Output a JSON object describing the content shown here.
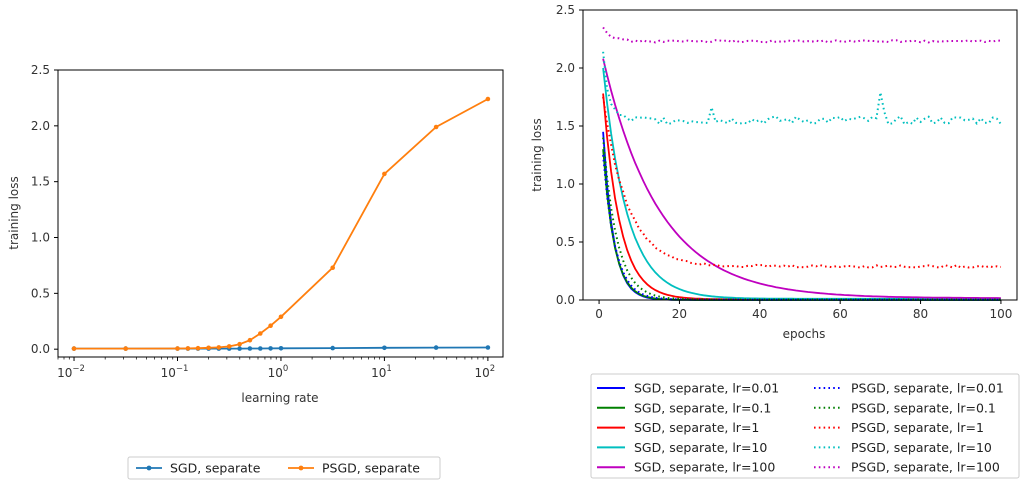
{
  "chart_data": [
    {
      "type": "line",
      "xlabel": "learning rate",
      "ylabel": "training loss",
      "xscale": "log",
      "xlim": [
        0.007,
        140
      ],
      "ylim": [
        -0.07,
        2.5
      ],
      "grid": false,
      "legend_position": "bottom-center",
      "xticks": [
        {
          "value": 0.01,
          "base": "10",
          "exp": "−2"
        },
        {
          "value": 0.1,
          "base": "10",
          "exp": "−1"
        },
        {
          "value": 1,
          "base": "10",
          "exp": "0"
        },
        {
          "value": 10,
          "base": "10",
          "exp": "1"
        },
        {
          "value": 100,
          "base": "10",
          "exp": "2"
        }
      ],
      "yticks": [
        "0.0",
        "0.5",
        "1.0",
        "1.5",
        "2.0",
        "2.5"
      ],
      "series": [
        {
          "name": "SGD, separate",
          "color": "#1f77b4",
          "marker": "circle",
          "x": [
            0.01,
            0.0316,
            0.1,
            0.126,
            0.158,
            0.2,
            0.251,
            0.316,
            0.398,
            0.501,
            0.631,
            0.794,
            1,
            3.16,
            10,
            31.6,
            100
          ],
          "y": [
            0.005,
            0.005,
            0.005,
            0.005,
            0.005,
            0.005,
            0.005,
            0.005,
            0.005,
            0.006,
            0.006,
            0.007,
            0.008,
            0.01,
            0.012,
            0.014,
            0.015
          ]
        },
        {
          "name": "PSGD, separate",
          "color": "#ff7f0e",
          "marker": "circle",
          "x": [
            0.01,
            0.0316,
            0.1,
            0.126,
            0.158,
            0.2,
            0.251,
            0.316,
            0.398,
            0.501,
            0.631,
            0.794,
            1,
            3.16,
            10,
            31.6,
            100
          ],
          "y": [
            0.005,
            0.005,
            0.006,
            0.007,
            0.009,
            0.012,
            0.016,
            0.025,
            0.045,
            0.08,
            0.14,
            0.21,
            0.29,
            0.73,
            1.57,
            1.99,
            2.24
          ]
        }
      ]
    },
    {
      "type": "line",
      "xlabel": "epochs",
      "ylabel": "training loss",
      "xlim": [
        -4,
        104
      ],
      "ylim": [
        0,
        2.5
      ],
      "grid": false,
      "legend_position": "bottom-center",
      "xticks": [
        "0",
        "20",
        "40",
        "60",
        "80",
        "100"
      ],
      "yticks": [
        "0.0",
        "0.5",
        "1.0",
        "1.5",
        "2.0",
        "2.5"
      ],
      "series": [
        {
          "name": "SGD, separate, lr=0.01",
          "color": "#0000ff",
          "style": "solid",
          "start": 1.45,
          "plateau": 0.0,
          "tau": 2.6,
          "noise": 0
        },
        {
          "name": "SGD, separate, lr=0.1",
          "color": "#008000",
          "style": "solid",
          "start": 1.3,
          "plateau": 0.0,
          "tau": 2.8,
          "noise": 0
        },
        {
          "name": "SGD, separate, lr=1",
          "color": "#ff0000",
          "style": "solid",
          "start": 1.78,
          "plateau": 0.005,
          "tau": 4.2,
          "noise": 0
        },
        {
          "name": "SGD, separate, lr=10",
          "color": "#00bfbf",
          "style": "solid",
          "start": 2.0,
          "plateau": 0.01,
          "tau": 6.0,
          "noise": 0
        },
        {
          "name": "SGD, separate, lr=100",
          "color": "#bf00bf",
          "style": "solid",
          "start": 2.08,
          "plateau": 0.015,
          "tau": 14.0,
          "noise": 0
        },
        {
          "name": "PSGD, separate, lr=0.01",
          "color": "#0000ff",
          "style": "dotted",
          "start": 1.25,
          "plateau": 0.003,
          "tau": 3.0,
          "noise": 0
        },
        {
          "name": "PSGD, separate, lr=0.1",
          "color": "#008000",
          "style": "dotted",
          "start": 1.4,
          "plateau": 0.004,
          "tau": 3.5,
          "noise": 0
        },
        {
          "name": "PSGD, separate, lr=1",
          "color": "#ff0000",
          "style": "dotted",
          "start": 1.75,
          "plateau": 0.29,
          "tau": 6.0,
          "noise": 0.012
        },
        {
          "name": "PSGD, separate, lr=10",
          "color": "#00bfbf",
          "style": "dotted",
          "start": 2.12,
          "plateau": 1.55,
          "tau": 1.5,
          "noise": 0.035,
          "spikes": [
            [
              28,
              1.66
            ],
            [
              70,
              1.79
            ],
            [
              71,
              1.62
            ]
          ]
        },
        {
          "name": "PSGD, separate, lr=100",
          "color": "#bf00bf",
          "style": "dotted",
          "start": 2.36,
          "plateau": 2.23,
          "tau": 2.0,
          "noise": 0.01
        }
      ]
    }
  ]
}
